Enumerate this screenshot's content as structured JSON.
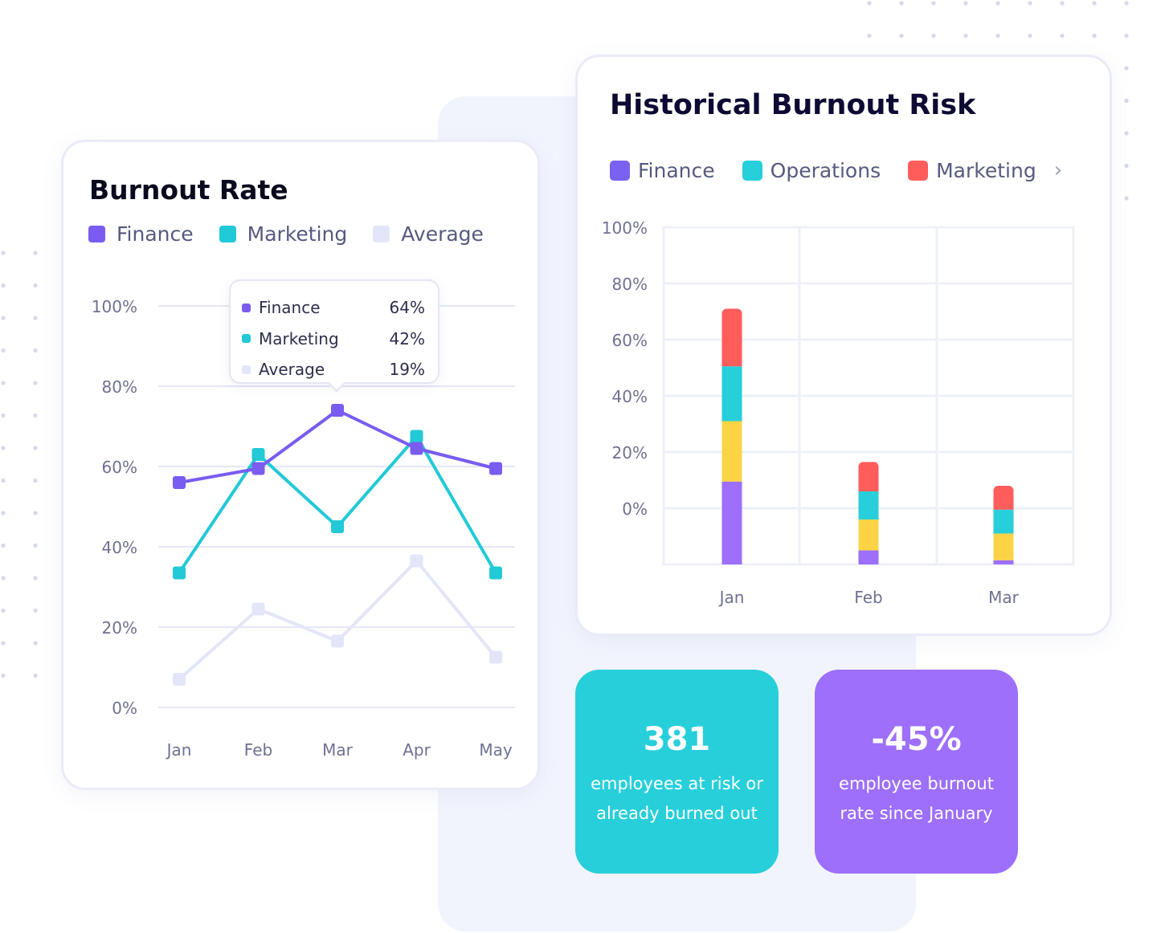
{
  "colors": {
    "finance": "#7a5cf0",
    "marketing": "#22c9d6",
    "average": "#e3e6f8",
    "hist_finance": "#9d6ffb",
    "operations": "#27cfda",
    "hist_marketing": "#ff5c5c",
    "hist_extra": "#fbd446",
    "stat_teal": "#27cfda",
    "stat_purple": "#9d6ffb"
  },
  "burnout_rate": {
    "title": "Burnout Rate",
    "legend": [
      {
        "label": "Finance",
        "color": "#7a5cf0"
      },
      {
        "label": "Marketing",
        "color": "#22c9d6"
      },
      {
        "label": "Average",
        "color": "#e3e6f8"
      }
    ],
    "tooltip": {
      "rows": [
        {
          "label": "Finance",
          "value": "64%",
          "color": "#7a5cf0"
        },
        {
          "label": "Marketing",
          "value": "42%",
          "color": "#22c9d6"
        },
        {
          "label": "Average",
          "value": "19%",
          "color": "#e3e6f8"
        }
      ]
    }
  },
  "historical": {
    "title": "Historical Burnout Risk",
    "legend": [
      {
        "label": "Finance",
        "color": "#7b61f2"
      },
      {
        "label": "Operations",
        "color": "#27cfda"
      },
      {
        "label": "Marketing",
        "color": "#ff5c5c"
      }
    ],
    "legend_more_icon": "chevron-right-icon"
  },
  "chart_data": [
    {
      "type": "line",
      "title": "Burnout Rate",
      "x": [
        "Jan",
        "Feb",
        "Mar",
        "Apr",
        "May"
      ],
      "ylim": [
        0,
        100
      ],
      "yticks": [
        "100%",
        "80%",
        "60%",
        "40%",
        "20%",
        "0%"
      ],
      "grid": true,
      "legend_position": "top-left",
      "series": [
        {
          "name": "Finance",
          "values": [
            56,
            59.5,
            74,
            64.5,
            59.5
          ],
          "color": "#7a5cf0"
        },
        {
          "name": "Marketing",
          "values": [
            33.5,
            63,
            45,
            67.5,
            33.5
          ],
          "color": "#22c9d6"
        },
        {
          "name": "Average",
          "values": [
            7,
            24.5,
            16.5,
            36.5,
            12.5
          ],
          "color": "#e3e6f8"
        }
      ]
    },
    {
      "type": "bar",
      "stacked": true,
      "title": "Historical Burnout Risk",
      "categories": [
        "Jan",
        "Feb",
        "Mar"
      ],
      "yticks": [
        "100%",
        "80%",
        "60%",
        "40%",
        "20%",
        "0%"
      ],
      "ylim": [
        -20,
        100
      ],
      "grid": true,
      "legend_position": "top",
      "series": [
        {
          "values": [
            29.5,
            5,
            1.5
          ],
          "color": "#9d6ffb"
        },
        {
          "values": [
            21.5,
            11,
            9.5
          ],
          "color": "#fbd446"
        },
        {
          "values": [
            19.5,
            10,
            8.5
          ],
          "color": "#27cfda"
        },
        {
          "values": [
            20.5,
            10.5,
            8.5
          ],
          "color": "#ff5c5c"
        }
      ]
    }
  ],
  "stats": [
    {
      "value": "381",
      "description": "employees at risk or already burned out"
    },
    {
      "value": "-45%",
      "description": "employee burnout rate since January"
    }
  ]
}
